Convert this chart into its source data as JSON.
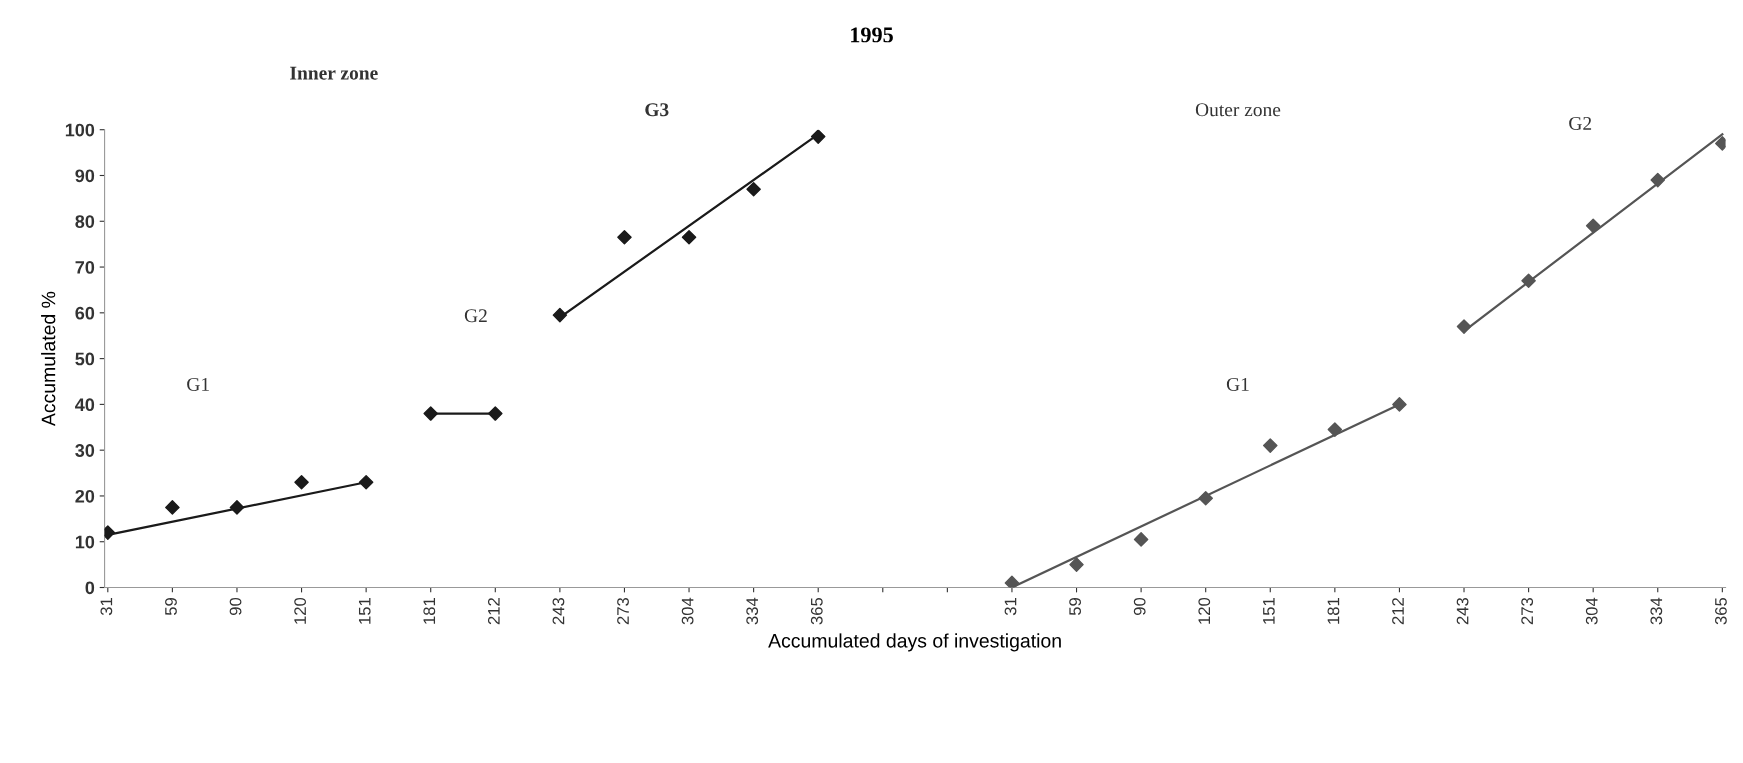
{
  "chart_data": {
    "type": "scatter",
    "title": "1995",
    "xlabel": "Accumulated days of investigation",
    "ylabel": "Accumulated %",
    "categories": [
      "31",
      "59",
      "90",
      "120",
      "151",
      "181",
      "212",
      "243",
      "273",
      "304",
      "334",
      "365",
      null,
      null,
      "31",
      "59",
      "90",
      "120",
      "151",
      "181",
      "212",
      "243",
      "273",
      "304",
      "334",
      "365"
    ],
    "ylim": [
      0,
      100
    ],
    "yticks": [
      0,
      10,
      20,
      30,
      40,
      50,
      60,
      70,
      80,
      90,
      100
    ],
    "grid": false,
    "legend": false,
    "series": [
      {
        "marker": "diamond",
        "color": "#1a1a1a",
        "values": [
          12,
          17.5,
          17.5,
          23,
          23,
          38,
          38,
          59.5,
          76.5,
          76.5,
          87,
          98.5,
          null,
          null,
          null,
          null,
          null,
          null,
          null,
          null,
          null,
          null,
          null,
          null,
          null,
          null
        ]
      },
      {
        "marker": "diamond",
        "color": "#555555",
        "values": [
          null,
          null,
          null,
          null,
          null,
          null,
          null,
          null,
          null,
          null,
          null,
          null,
          null,
          null,
          1,
          5,
          10.5,
          19.5,
          31,
          34.5,
          40,
          57,
          67,
          79,
          89,
          97
        ]
      },
      {
        "type": "line",
        "color": "#1a1a1a",
        "values": [
          11.5,
          null,
          null,
          null,
          23,
          null,
          null,
          null,
          null,
          null,
          null,
          null,
          null,
          null,
          null,
          null,
          null,
          null,
          null,
          null,
          null,
          null,
          null,
          null,
          null,
          null
        ]
      },
      {
        "type": "line",
        "color": "#1a1a1a",
        "values": [
          null,
          null,
          null,
          null,
          null,
          38,
          38,
          null,
          null,
          null,
          null,
          null,
          null,
          null,
          null,
          null,
          null,
          null,
          null,
          null,
          null,
          null,
          null,
          null,
          null,
          null
        ]
      },
      {
        "type": "line",
        "color": "#1a1a1a",
        "values": [
          null,
          null,
          null,
          null,
          null,
          null,
          null,
          59,
          null,
          null,
          null,
          99,
          null,
          null,
          null,
          null,
          null,
          null,
          null,
          null,
          null,
          null,
          null,
          null,
          null,
          null
        ]
      },
      {
        "type": "line",
        "color": "#555555",
        "values": [
          null,
          null,
          null,
          null,
          null,
          null,
          null,
          null,
          null,
          null,
          null,
          null,
          null,
          null,
          0,
          null,
          null,
          null,
          null,
          null,
          40,
          null,
          null,
          null,
          null,
          null
        ]
      },
      {
        "type": "line",
        "color": "#555555",
        "values": [
          null,
          null,
          null,
          null,
          null,
          null,
          null,
          null,
          null,
          null,
          null,
          null,
          null,
          null,
          null,
          null,
          null,
          null,
          null,
          null,
          null,
          56,
          null,
          null,
          null,
          99
        ]
      }
    ],
    "annotations": [
      "Inner zone",
      "G1",
      "G2",
      "G3",
      "Outer zone",
      "G1",
      "G2"
    ]
  }
}
